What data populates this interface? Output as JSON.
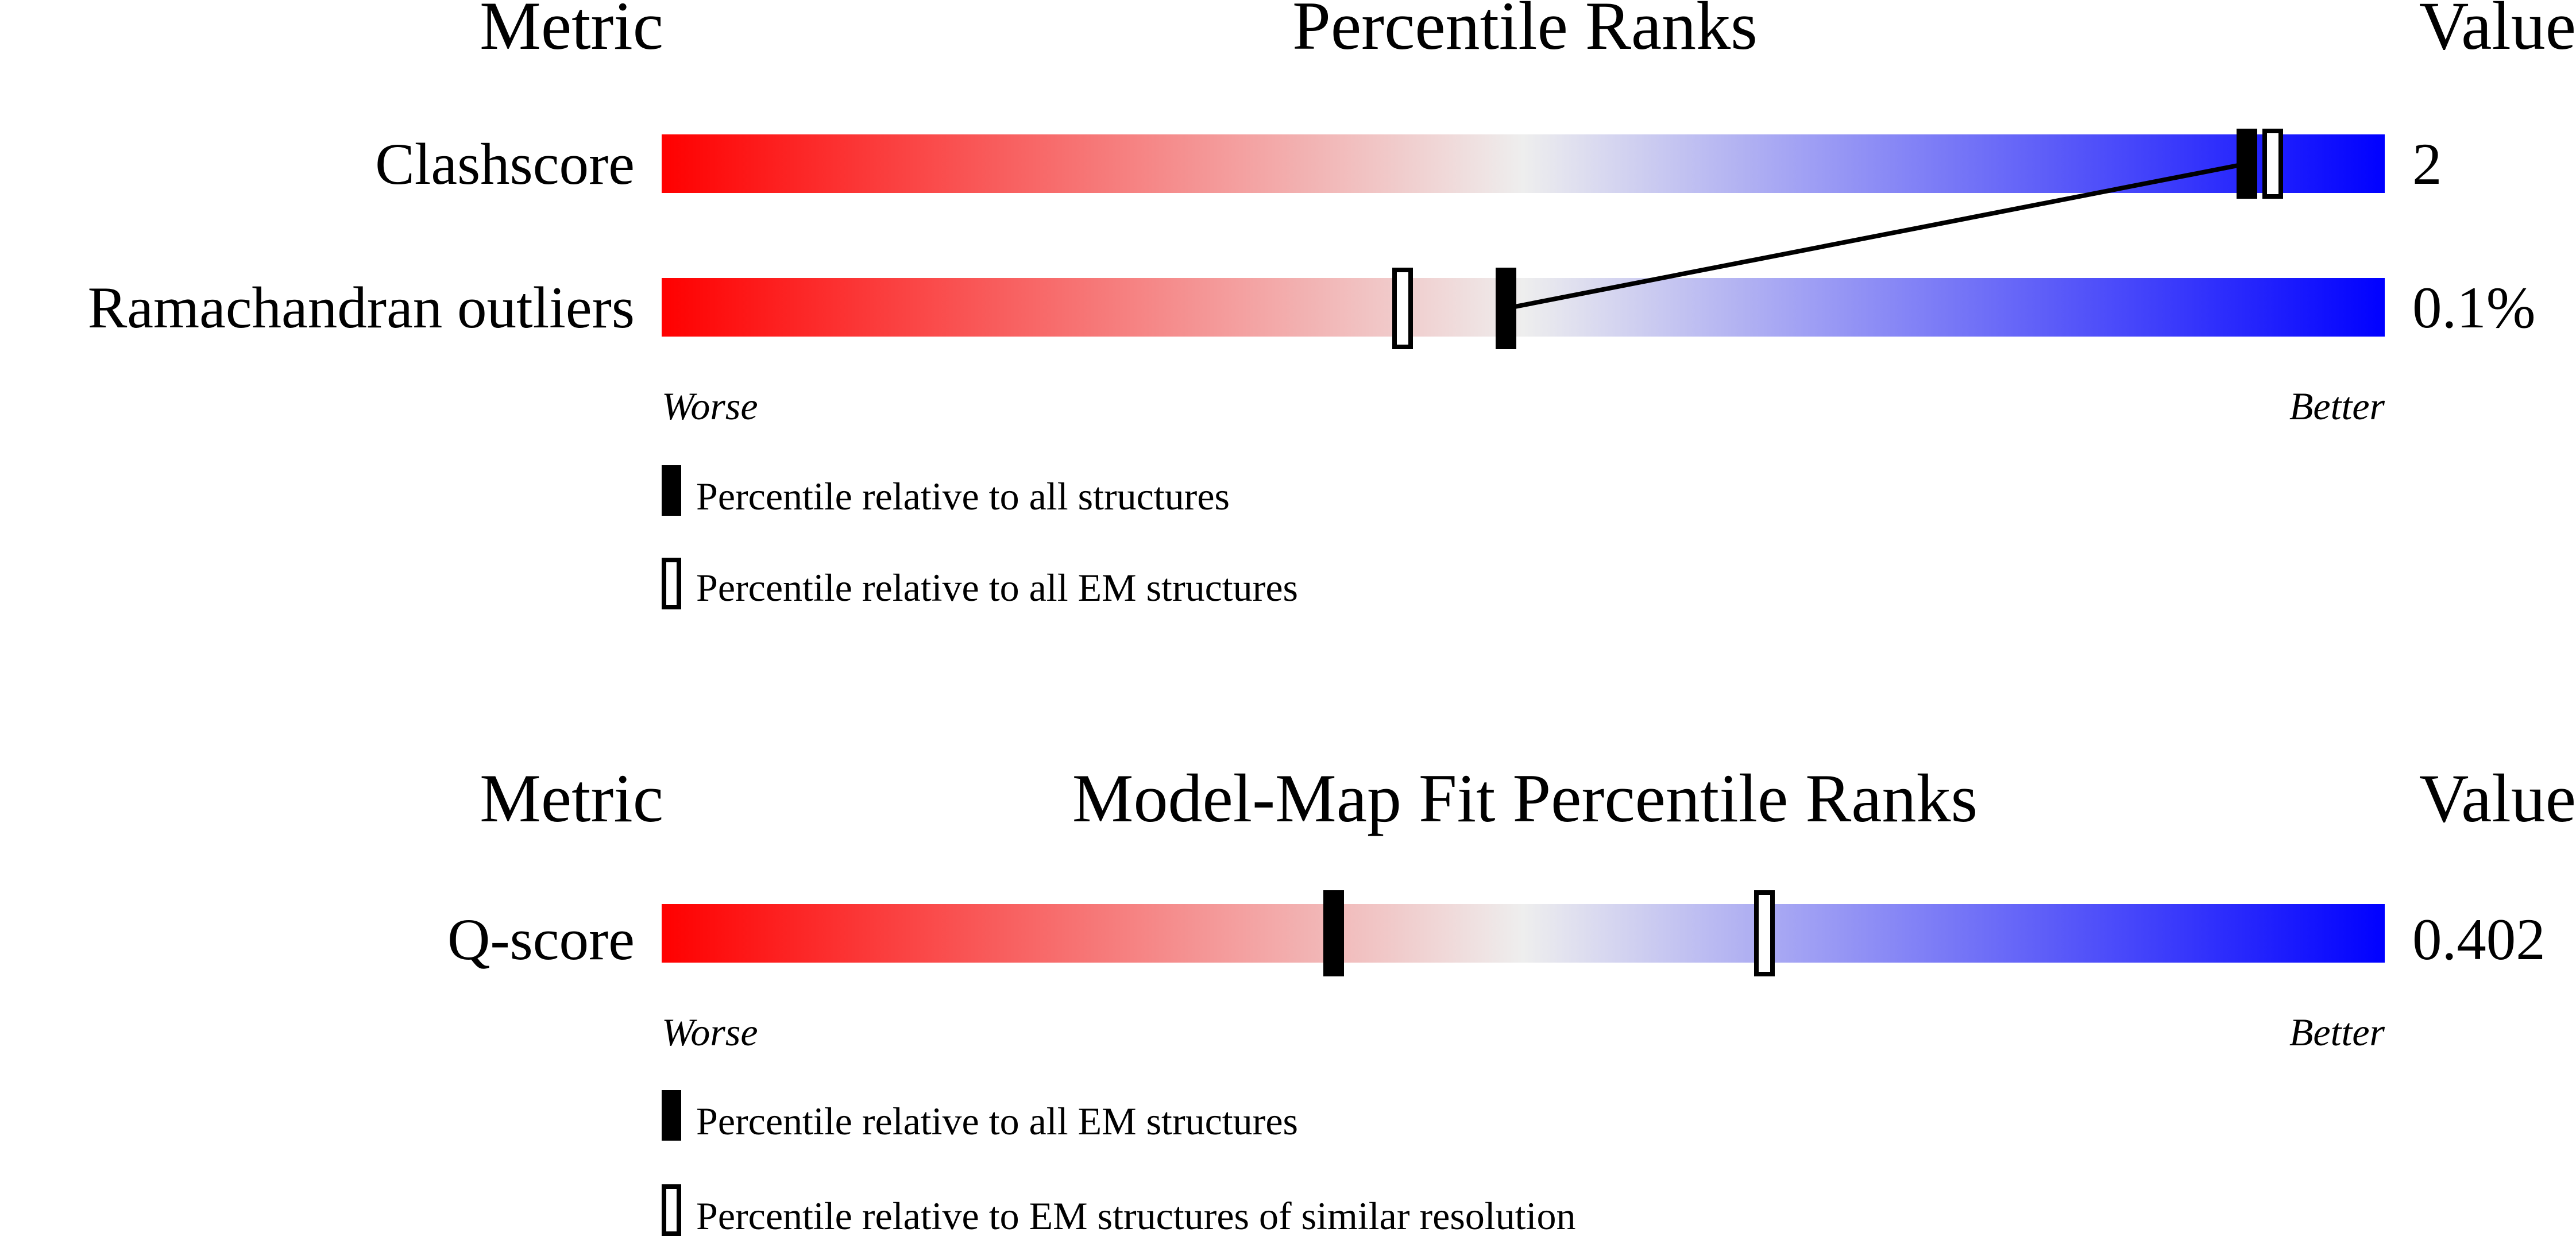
{
  "colors": {
    "worse": "#ff0000",
    "mid": "#eeeeee",
    "better": "#0000ff",
    "marker": "#000000",
    "open_marker_fill": "#ffffff"
  },
  "panels": [
    {
      "headers": {
        "metric": "Metric",
        "title": "Percentile Ranks",
        "value": "Value"
      },
      "rows": [
        {
          "label": "Clashscore",
          "value": "2"
        },
        {
          "label": "Ramachandran outliers",
          "value": "0.1%"
        }
      ],
      "axis": {
        "worse": "Worse",
        "better": "Better"
      },
      "legend": [
        {
          "marker": "filled",
          "text": "Percentile relative to all structures"
        },
        {
          "marker": "open",
          "text": "Percentile relative to all EM structures"
        }
      ]
    },
    {
      "headers": {
        "metric": "Metric",
        "title": "Model-Map Fit Percentile Ranks",
        "value": "Value"
      },
      "rows": [
        {
          "label": "Q-score",
          "value": "0.402"
        }
      ],
      "axis": {
        "worse": "Worse",
        "better": "Better"
      },
      "legend": [
        {
          "marker": "filled",
          "text": "Percentile relative to all EM structures"
        },
        {
          "marker": "open",
          "text": "Percentile relative to EM structures of similar resolution"
        }
      ]
    }
  ],
  "chart_data": {
    "type": "bar",
    "xlim": [
      0,
      100
    ],
    "panels": [
      {
        "metrics": [
          {
            "name": "Clashscore",
            "value": "2",
            "percentile_filled": 92,
            "percentile_open": 93.5
          },
          {
            "name": "Ramachandran outliers",
            "value": "0.1%",
            "percentile_filled": 49,
            "percentile_open": 43
          }
        ],
        "connector": "filled"
      },
      {
        "metrics": [
          {
            "name": "Q-score",
            "value": "0.402",
            "percentile_filled": 39,
            "percentile_open": 64
          }
        ]
      }
    ]
  }
}
